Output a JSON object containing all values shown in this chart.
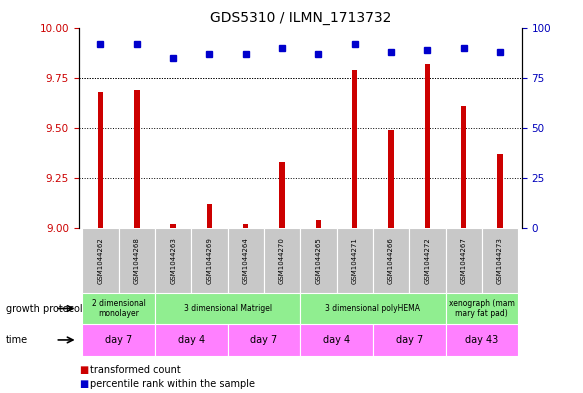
{
  "title": "GDS5310 / ILMN_1713732",
  "samples": [
    "GSM1044262",
    "GSM1044268",
    "GSM1044263",
    "GSM1044269",
    "GSM1044264",
    "GSM1044270",
    "GSM1044265",
    "GSM1044271",
    "GSM1044266",
    "GSM1044272",
    "GSM1044267",
    "GSM1044273"
  ],
  "red_values": [
    9.68,
    9.69,
    9.02,
    9.12,
    9.02,
    9.33,
    9.04,
    9.79,
    9.49,
    9.82,
    9.61,
    9.37
  ],
  "blue_values": [
    92,
    92,
    85,
    87,
    87,
    90,
    87,
    92,
    88,
    89,
    90,
    88
  ],
  "ylim_left": [
    9.0,
    10.0
  ],
  "ylim_right": [
    0,
    100
  ],
  "yticks_left": [
    9.0,
    9.25,
    9.5,
    9.75,
    10.0
  ],
  "yticks_right": [
    0,
    25,
    50,
    75,
    100
  ],
  "growth_protocol_groups": [
    {
      "label": "2 dimensional\nmonolayer",
      "start": 0,
      "end": 2,
      "color": "#90EE90"
    },
    {
      "label": "3 dimensional Matrigel",
      "start": 2,
      "end": 6,
      "color": "#90EE90"
    },
    {
      "label": "3 dimensional polyHEMA",
      "start": 6,
      "end": 10,
      "color": "#90EE90"
    },
    {
      "label": "xenograph (mam\nmary fat pad)",
      "start": 10,
      "end": 12,
      "color": "#90EE90"
    }
  ],
  "time_groups": [
    {
      "label": "day 7",
      "start": 0,
      "end": 2,
      "color": "#FF80FF"
    },
    {
      "label": "day 4",
      "start": 2,
      "end": 4,
      "color": "#FF80FF"
    },
    {
      "label": "day 7",
      "start": 4,
      "end": 6,
      "color": "#FF80FF"
    },
    {
      "label": "day 4",
      "start": 6,
      "end": 8,
      "color": "#FF80FF"
    },
    {
      "label": "day 7",
      "start": 8,
      "end": 10,
      "color": "#FF80FF"
    },
    {
      "label": "day 43",
      "start": 10,
      "end": 12,
      "color": "#FF80FF"
    }
  ],
  "legend_items": [
    {
      "color": "#CC0000",
      "label": "transformed count"
    },
    {
      "color": "#0000CC",
      "label": "percentile rank within the sample"
    }
  ],
  "bar_color": "#CC0000",
  "dot_color": "#0000CC",
  "background_color": "#ffffff",
  "sample_bg_color": "#C8C8C8",
  "left_axis_color": "#CC0000",
  "right_axis_color": "#0000BB"
}
